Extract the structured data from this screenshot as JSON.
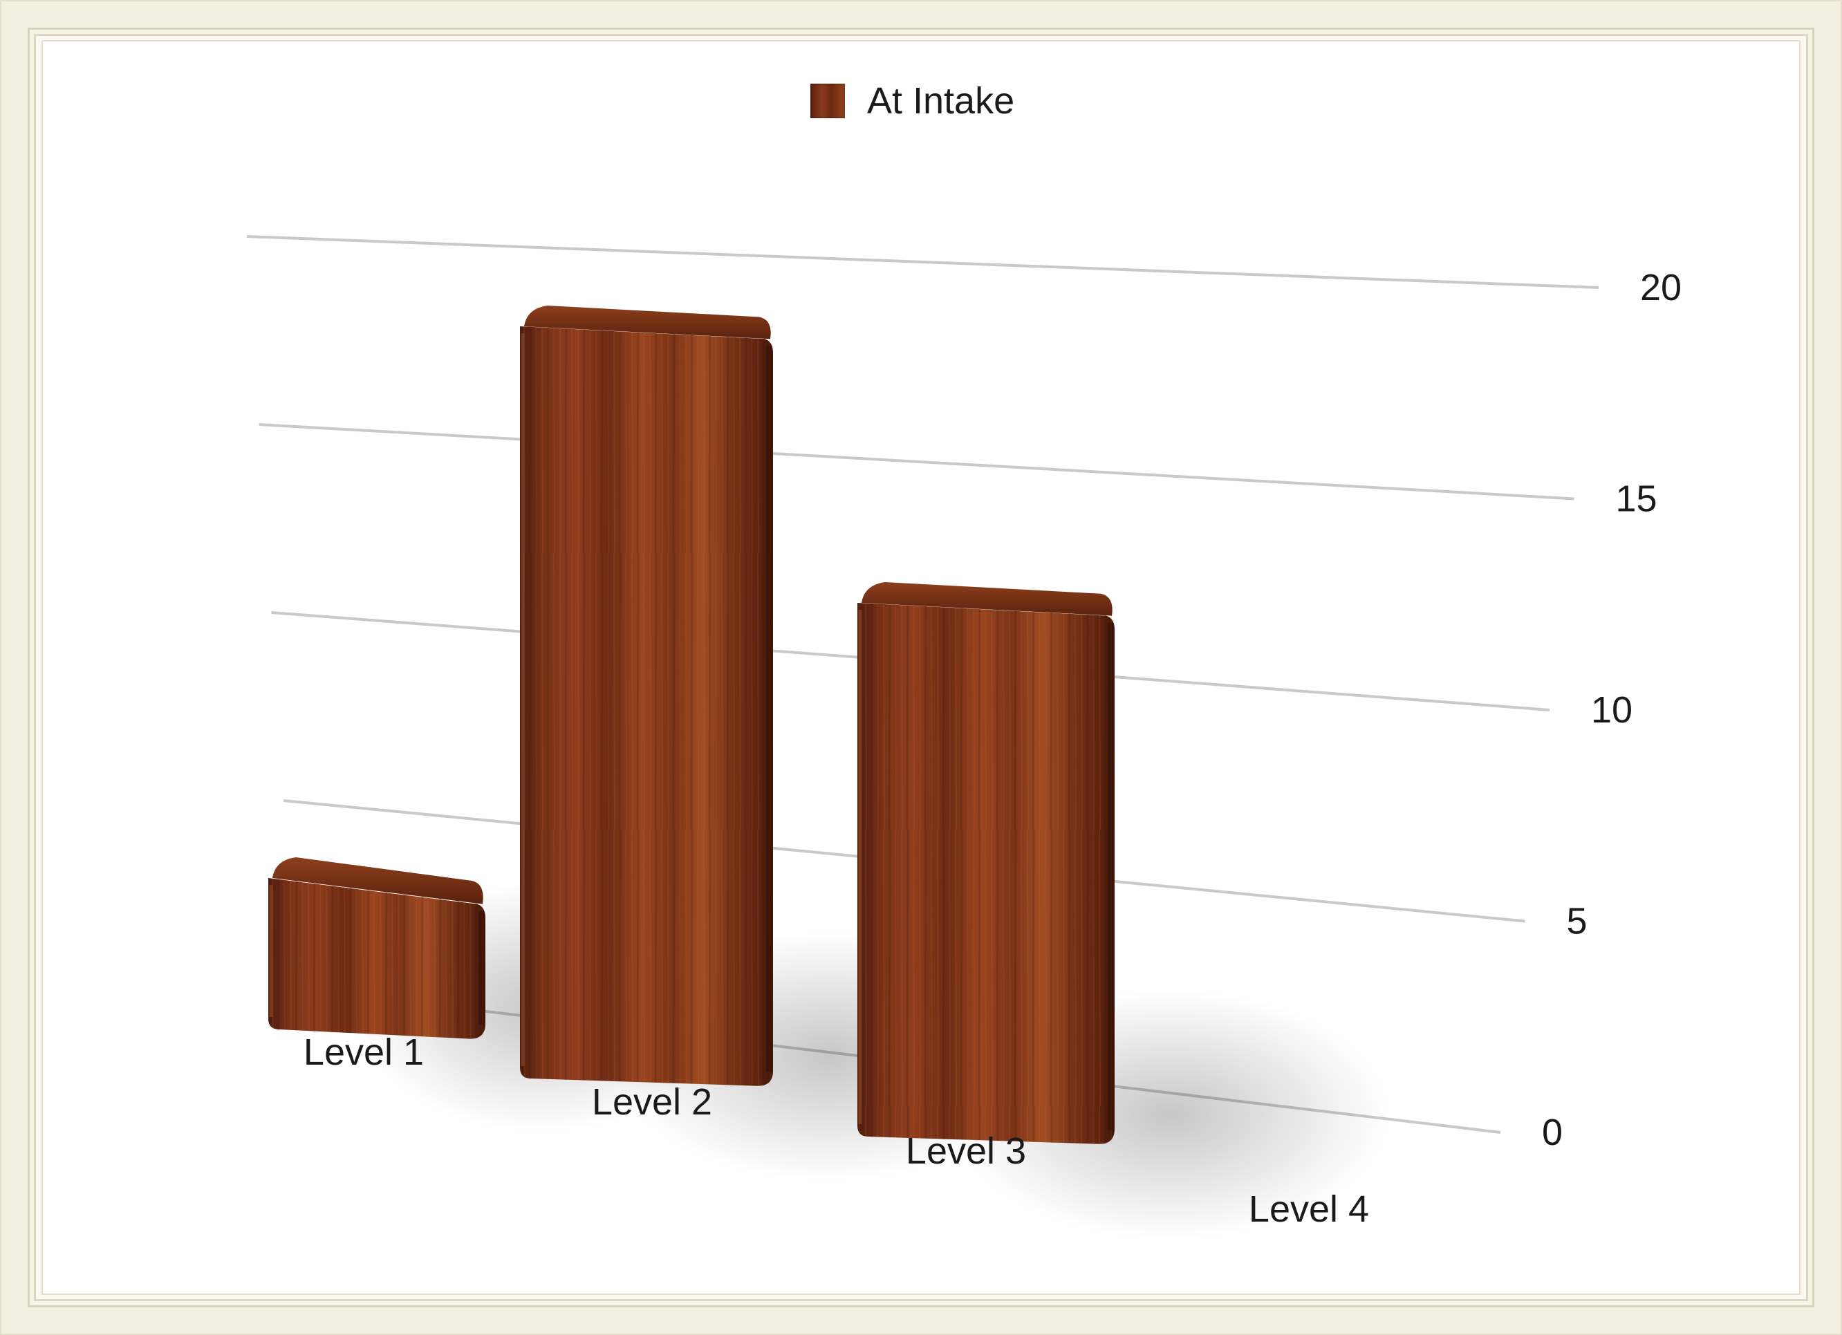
{
  "chart_data": {
    "type": "bar",
    "title": "",
    "xlabel": "",
    "ylabel": "",
    "categories": [
      "Level 1",
      "Level 2",
      "Level 3",
      "Level 4"
    ],
    "series": [
      {
        "name": "At Intake",
        "values": [
          4,
          19,
          13,
          0
        ]
      }
    ],
    "ylim": [
      0,
      20
    ],
    "yticks": [
      "0",
      "5",
      "10",
      "15",
      "20"
    ],
    "y_axis_side": "right",
    "grid": true,
    "legend": "top-center",
    "style": "3d-wood-texture",
    "colors": {
      "bar_dark": "#5a200f",
      "bar_mid": "#8a3a1c",
      "bar_light": "#b25a2c",
      "gridline": "#c9c9c9"
    }
  }
}
